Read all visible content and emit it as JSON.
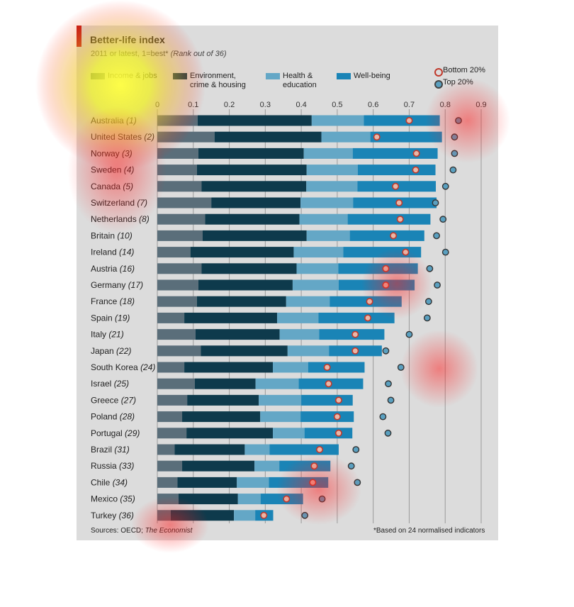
{
  "colors": {
    "accent": "#c01818",
    "jobs": "#5a6e7a",
    "environment": "#0e3a4c",
    "health": "#64a7c6",
    "wellbeing": "#1a84b6",
    "bottom_marker": "#c0392b",
    "top_marker": "#5aa0c0"
  },
  "header": {
    "title": "Better-life index",
    "subtitle": "2011 or latest, 1=best*",
    "subtitle_note": "(Rank out of 36)"
  },
  "legend": {
    "items": [
      {
        "label_line1": "Income & jobs",
        "label_line2": ""
      },
      {
        "label_line1": "Environment,",
        "label_line2": "crime & housing"
      },
      {
        "label_line1": "Health &",
        "label_line2": "education"
      },
      {
        "label_line1": "Well-being",
        "label_line2": ""
      }
    ],
    "markers": [
      "Bottom 20%",
      "Top 20%"
    ]
  },
  "footer": {
    "sources": "Sources: OECD;",
    "sources_italic": "The Economist",
    "footnote": "*Based on 24 normalised indicators"
  },
  "chart_data": {
    "type": "bar",
    "stacked": true,
    "orientation": "horizontal",
    "xlim": [
      0,
      0.9
    ],
    "ticks": [
      "0",
      "0.1",
      "0.2",
      "0.3",
      "0.4",
      "0.5",
      "0.6",
      "0.7",
      "0.8",
      "0.9"
    ],
    "grid": true,
    "legend_position": "top",
    "categories": [
      {
        "country": "Australia",
        "rank": "(1)"
      },
      {
        "country": "United States",
        "rank": "(2)"
      },
      {
        "country": "Norway",
        "rank": "(3)"
      },
      {
        "country": "Sweden",
        "rank": "(4)"
      },
      {
        "country": "Canada",
        "rank": "(5)"
      },
      {
        "country": "Switzerland",
        "rank": "(7)"
      },
      {
        "country": "Netherlands",
        "rank": "(8)"
      },
      {
        "country": "Britain",
        "rank": "(10)"
      },
      {
        "country": "Ireland",
        "rank": "(14)"
      },
      {
        "country": "Austria",
        "rank": "(16)"
      },
      {
        "country": "Germany",
        "rank": "(17)"
      },
      {
        "country": "France",
        "rank": "(18)"
      },
      {
        "country": "Spain",
        "rank": "(19)"
      },
      {
        "country": "Italy",
        "rank": "(21)"
      },
      {
        "country": "Japan",
        "rank": "(22)"
      },
      {
        "country": "South Korea",
        "rank": "(24)"
      },
      {
        "country": "Israel",
        "rank": "(25)"
      },
      {
        "country": "Greece",
        "rank": "(27)"
      },
      {
        "country": "Poland",
        "rank": "(28)"
      },
      {
        "country": "Portugal",
        "rank": "(29)"
      },
      {
        "country": "Brazil",
        "rank": "(31)"
      },
      {
        "country": "Russia",
        "rank": "(33)"
      },
      {
        "country": "Chile",
        "rank": "(34)"
      },
      {
        "country": "Mexico",
        "rank": "(35)"
      },
      {
        "country": "Turkey",
        "rank": "(36)"
      }
    ],
    "series": [
      {
        "name": "Income & jobs",
        "values": [
          0.112,
          0.159,
          0.114,
          0.11,
          0.123,
          0.15,
          0.133,
          0.126,
          0.092,
          0.123,
          0.114,
          0.11,
          0.075,
          0.106,
          0.121,
          0.075,
          0.104,
          0.083,
          0.069,
          0.081,
          0.048,
          0.069,
          0.056,
          0.059,
          0.037
        ]
      },
      {
        "name": "Environment, crime & housing",
        "values": [
          0.317,
          0.297,
          0.293,
          0.305,
          0.291,
          0.248,
          0.262,
          0.289,
          0.287,
          0.264,
          0.262,
          0.248,
          0.258,
          0.234,
          0.241,
          0.246,
          0.169,
          0.199,
          0.217,
          0.24,
          0.195,
          0.201,
          0.165,
          0.165,
          0.176
        ]
      },
      {
        "name": "Health & education",
        "values": [
          0.145,
          0.136,
          0.136,
          0.142,
          0.142,
          0.146,
          0.134,
          0.12,
          0.138,
          0.116,
          0.128,
          0.121,
          0.115,
          0.11,
          0.115,
          0.098,
          0.12,
          0.118,
          0.112,
          0.088,
          0.069,
          0.069,
          0.089,
          0.063,
          0.059
        ]
      },
      {
        "name": "Well-being",
        "values": [
          0.211,
          0.199,
          0.236,
          0.216,
          0.218,
          0.232,
          0.23,
          0.207,
          0.216,
          0.221,
          0.211,
          0.2,
          0.211,
          0.181,
          0.147,
          0.157,
          0.179,
          0.143,
          0.148,
          0.133,
          0.192,
          0.142,
          0.165,
          0.118,
          0.05
        ]
      }
    ],
    "markers": {
      "bottom_20": [
        0.7,
        0.61,
        0.72,
        0.718,
        0.662,
        0.672,
        0.675,
        0.656,
        0.69,
        0.635,
        0.635,
        0.59,
        0.585,
        0.55,
        0.55,
        0.472,
        0.476,
        0.504,
        0.5,
        0.504,
        0.451,
        0.436,
        0.432,
        0.359,
        0.296
      ],
      "top_20": [
        0.837,
        0.826,
        0.826,
        0.822,
        0.801,
        0.773,
        0.794,
        0.776,
        0.801,
        0.757,
        0.778,
        0.754,
        0.75,
        0.7,
        0.635,
        0.677,
        0.642,
        0.649,
        0.627,
        0.641,
        0.552,
        0.539,
        0.556,
        0.458,
        0.41
      ]
    }
  }
}
